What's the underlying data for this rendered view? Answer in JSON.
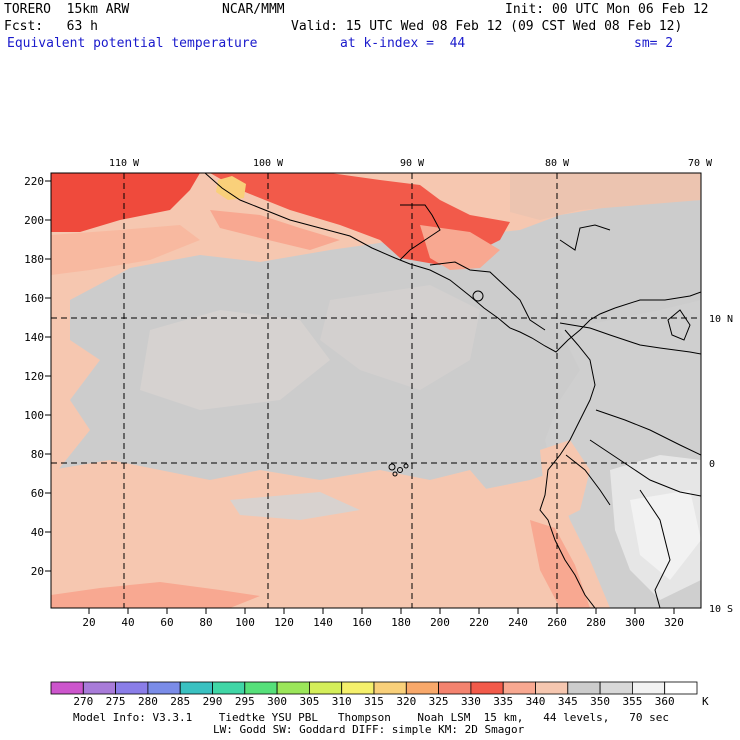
{
  "header": {
    "model": "TORERO  15km ARW",
    "producer": "NCAR/MMM",
    "init": "Init: 00 UTC Mon 06 Feb 12",
    "forecast": "Fcst:   63 h",
    "valid": "Valid: 15 UTC Wed 08 Feb 12 (09 CST Wed 08 Feb 12)",
    "field": "Equivalent potential temperature",
    "level": "at k-index =  44",
    "smoothing": "sm= 2"
  },
  "map": {
    "top_longitude_labels": [
      "110 W",
      "100 W",
      "90 W",
      "80 W",
      "70 W"
    ],
    "right_latitude_labels": [
      "10 N",
      "0",
      "10 S"
    ],
    "y_axis_ticks": [
      "220",
      "200",
      "180",
      "160",
      "140",
      "120",
      "100",
      "80",
      "60",
      "40",
      "20"
    ],
    "x_axis_ticks": [
      "20",
      "40",
      "60",
      "80",
      "100",
      "120",
      "140",
      "160",
      "180",
      "200",
      "220",
      "240",
      "260",
      "280",
      "300",
      "320"
    ],
    "colors": {
      "salmon_330": "#f4836f",
      "salmon_335": "#f8a891",
      "peach_340": "#f6c7b0",
      "tan_345": "#e7ccbf",
      "gray_350": "#cccccc",
      "gray_355": "#d8d8d8",
      "white_360": "#f2f2f2",
      "red_325": "#f25a4a",
      "yellow_320": "#f9d07a"
    }
  },
  "colorbar": {
    "unit": "K",
    "labels": [
      "270",
      "275",
      "280",
      "285",
      "290",
      "295",
      "300",
      "305",
      "310",
      "315",
      "320",
      "325",
      "330",
      "335",
      "340",
      "345",
      "350",
      "355",
      "360"
    ],
    "colors": [
      "#cc55cc",
      "#a87bd9",
      "#8a7de8",
      "#7a8ce8",
      "#3ac1c1",
      "#40d6a6",
      "#56e07a",
      "#9be65a",
      "#d4ee5a",
      "#f5f06c",
      "#f9d07a",
      "#f8a86a",
      "#f4836f",
      "#f25a4a",
      "#f8a891",
      "#f6c7b0",
      "#cccccc",
      "#d8d8d8",
      "#f2f2f2",
      "#ffffff"
    ]
  },
  "footer": {
    "line1": "Model Info: V3.3.1    Tiedtke YSU PBL   Thompson    Noah LSM  15 km,   44 levels,   70 sec",
    "line2": "LW: Godd SW: Goddard DIFF: simple KM: 2D Smagor"
  }
}
